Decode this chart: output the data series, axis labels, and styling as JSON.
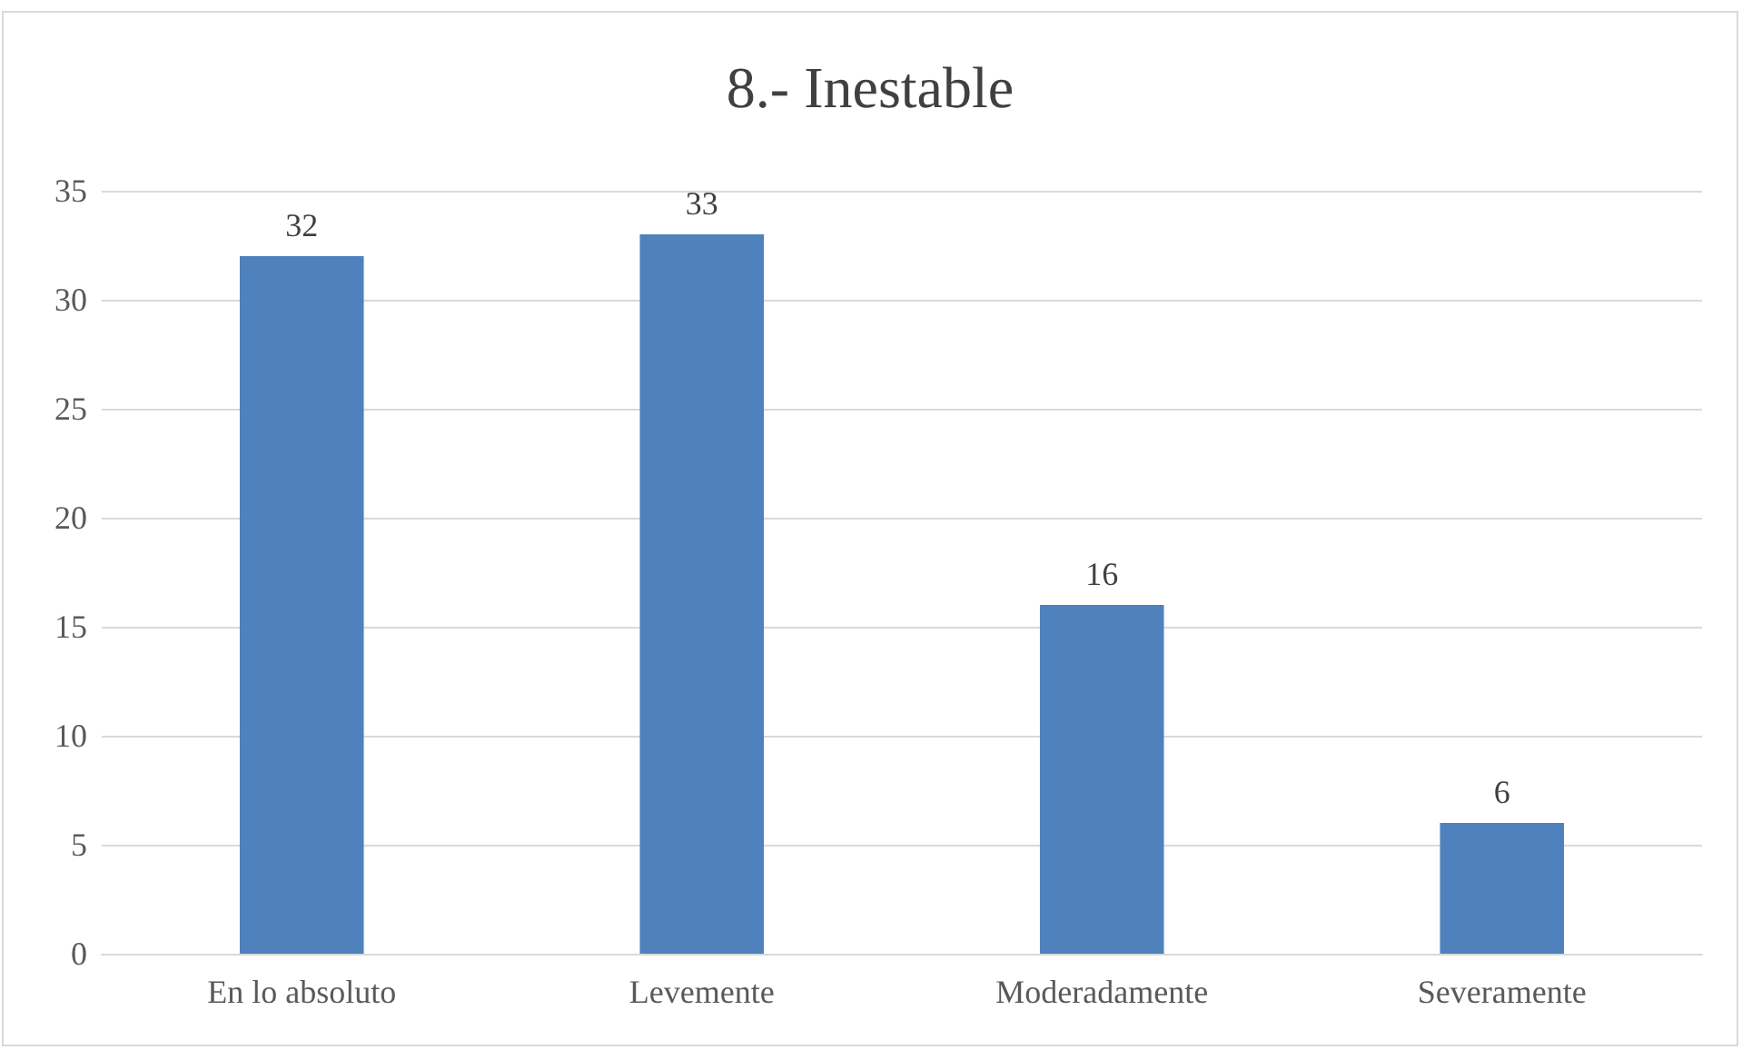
{
  "chart_data": {
    "type": "bar",
    "title": "8.- Inestable",
    "categories": [
      "En lo absoluto",
      "Levemente",
      "Moderadamente",
      "Severamente"
    ],
    "values": [
      32,
      33,
      16,
      6
    ],
    "color": "#4f81bd",
    "ylim": [
      0,
      35
    ],
    "yticks": [
      0,
      5,
      10,
      15,
      20,
      25,
      30,
      35
    ],
    "grid": "y",
    "data_labels": true
  }
}
